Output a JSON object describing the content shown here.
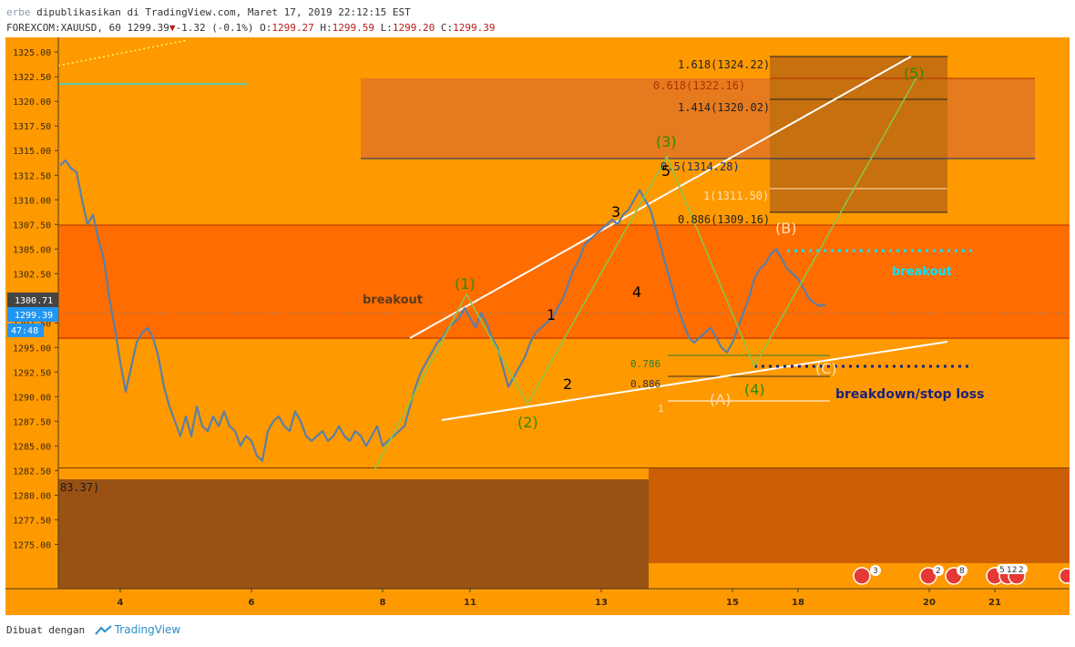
{
  "header": {
    "author": "erbe",
    "published": "dipublikasikan di TradingView.com, Maret 17, 2019 22:12:15 EST",
    "symbol": "FOREXCOM:XAUUSD, 60",
    "last": "1299.39",
    "change": "-1.32 (-0.1%)",
    "o_label": "O:",
    "o": "1299.27",
    "h_label": "H:",
    "h": "1299.59",
    "l_label": "L:",
    "l": "1299.20",
    "c_label": "C:",
    "c": "1299.39"
  },
  "footer": {
    "made_with": "Dibuat dengan",
    "brand": "TradingView"
  },
  "colors": {
    "bg": "#ff9900",
    "zone_resistance": "#ff6d00",
    "zone_support": "#995214",
    "price": "#5b7fa6",
    "wave": "#8bc34a",
    "trend": "#ffffff",
    "breakout_top": "#00e5ff",
    "breakdown": "#1a237e"
  },
  "chart_data": {
    "type": "line",
    "title": "",
    "ylim": [
      1270.5,
      1326.5
    ],
    "y_ticks": [
      1275.0,
      1277.5,
      1280.0,
      1282.5,
      1285.0,
      1287.5,
      1290.0,
      1292.5,
      1295.0,
      1297.5,
      1300.0,
      1302.5,
      1305.0,
      1307.5,
      1310.0,
      1312.5,
      1315.0,
      1317.5,
      1320.0,
      1322.5,
      1325.0
    ],
    "x_ticks": [
      {
        "t": 22,
        "label": "4"
      },
      {
        "t": 70,
        "label": "6"
      },
      {
        "t": 118,
        "label": "8"
      },
      {
        "t": 150,
        "label": "11"
      },
      {
        "t": 198,
        "label": "13"
      },
      {
        "t": 246,
        "label": "15"
      },
      {
        "t": 270,
        "label": "18"
      },
      {
        "t": 318,
        "label": "20"
      },
      {
        "t": 342,
        "label": "21"
      }
    ],
    "price_labels": {
      "level1": "1300.71",
      "last": "1299.39",
      "countdown": "47:48"
    },
    "series": [
      {
        "x": [
          0,
          2,
          4,
          6,
          8,
          10,
          12,
          14,
          16,
          18,
          20,
          22,
          24,
          26,
          28,
          30,
          32,
          34,
          36,
          38,
          40,
          42,
          44,
          46,
          48,
          50,
          52,
          54,
          56,
          58,
          60,
          62,
          64,
          66,
          68,
          70,
          72,
          74,
          76,
          78,
          80,
          82,
          84,
          86,
          88,
          90,
          92,
          94,
          96,
          98,
          100,
          102,
          104,
          106,
          108,
          110,
          112,
          114,
          116,
          118,
          120,
          122,
          124,
          126,
          128,
          130,
          132,
          134,
          136,
          138,
          140,
          142,
          144,
          146,
          148,
          150,
          152,
          154,
          156,
          158,
          160,
          162,
          164,
          166,
          168,
          170,
          172,
          174,
          176,
          178,
          180,
          182,
          184,
          186,
          188,
          190,
          192,
          194,
          196,
          198,
          200,
          202,
          204,
          206,
          208,
          210,
          212,
          214,
          216,
          218,
          220,
          222,
          224,
          226,
          228,
          230,
          232,
          234,
          236,
          238,
          240,
          242,
          244,
          246,
          248,
          250,
          252,
          254,
          256,
          258,
          260,
          262,
          264,
          266,
          268,
          270,
          272,
          274,
          276,
          278,
          280
        ],
        "y": [
          1313.5,
          1314.0,
          1313.2,
          1312.8,
          1310.0,
          1307.5,
          1308.5,
          1306.0,
          1304.0,
          1300.0,
          1297.0,
          1293.5,
          1290.5,
          1293.0,
          1295.5,
          1296.5,
          1297.0,
          1296.0,
          1294.0,
          1291.0,
          1289.0,
          1287.5,
          1286.0,
          1288.0,
          1286.0,
          1289.0,
          1287.0,
          1286.5,
          1288.0,
          1287.0,
          1288.5,
          1287.0,
          1286.5,
          1285.0,
          1286.0,
          1285.5,
          1284.0,
          1283.5,
          1286.5,
          1287.5,
          1288.0,
          1287.0,
          1286.5,
          1288.5,
          1287.5,
          1286.0,
          1285.5,
          1286.0,
          1286.5,
          1285.5,
          1286.0,
          1287.0,
          1286.0,
          1285.5,
          1286.5,
          1286.0,
          1285.0,
          1286.0,
          1287.0,
          1285.0,
          1285.5,
          1286.0,
          1286.5,
          1287.0,
          1289.0,
          1291.0,
          1292.5,
          1293.5,
          1294.5,
          1295.5,
          1296.0,
          1297.0,
          1297.5,
          1298.0,
          1299.0,
          1298.0,
          1297.0,
          1298.5,
          1297.5,
          1296.0,
          1295.0,
          1293.0,
          1291.0,
          1292.0,
          1293.0,
          1294.0,
          1295.5,
          1296.5,
          1297.0,
          1297.5,
          1298.0,
          1299.0,
          1300.0,
          1301.5,
          1303.0,
          1304.0,
          1305.5,
          1306.0,
          1306.5,
          1307.0,
          1307.5,
          1308.0,
          1307.5,
          1308.5,
          1309.0,
          1310.0,
          1311.0,
          1310.0,
          1309.0,
          1307.0,
          1305.0,
          1303.0,
          1301.0,
          1299.0,
          1297.5,
          1296.0,
          1295.5,
          1296.0,
          1296.5,
          1297.0,
          1296.0,
          1295.0,
          1294.5,
          1295.5,
          1297.0,
          1298.5,
          1300.0,
          1302.0,
          1303.0,
          1303.5,
          1304.5,
          1305.0,
          1304.0,
          1303.0,
          1302.5,
          1302.0,
          1301.0,
          1300.0,
          1299.5,
          1299.2,
          1299.39
        ]
      }
    ],
    "zones": [
      {
        "kind": "resistance",
        "y1": 1298.0,
        "y2": 1307.8
      },
      {
        "kind": "support",
        "y1": 1275.5,
        "y2": 1284.5
      },
      {
        "kind": "target",
        "y1": 1314.3,
        "y2": 1322.2
      }
    ],
    "fib_labels": [
      "1.618(1324.22)",
      "0.618(1322.16)",
      "1.414(1320.02)",
      "0.5(1314.28)",
      "1(1311.50)",
      "0.886(1309.16)",
      "0.786",
      "0.886",
      "1"
    ],
    "annotations": {
      "wave1": "(1)",
      "wave2": "(2)",
      "wave3": "(3)",
      "wave4": "(4)",
      "wave5": "(5)",
      "sub1": "1",
      "sub2": "2",
      "sub3": "3",
      "sub4": "4",
      "sub5": "5",
      "waveA": "(A)",
      "waveB": "(B)",
      "waveC": "(C)",
      "breakout_left": "breakout",
      "breakout_right": "breakout",
      "breakdown": "breakdown/stop loss",
      "support_label": "83.37)",
      "event1": "3",
      "event2": "2",
      "event3": "8",
      "event4": "5",
      "event5": "12",
      "event6": "2"
    }
  }
}
